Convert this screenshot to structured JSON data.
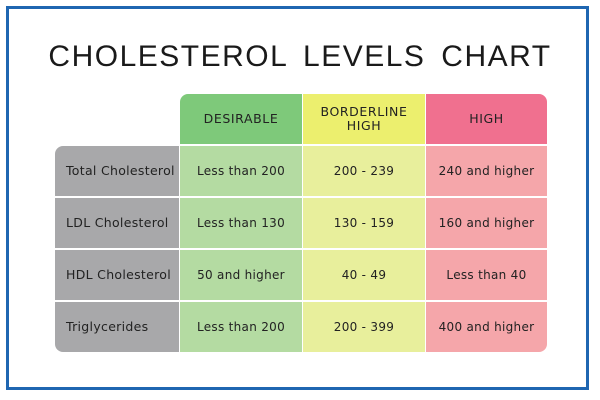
{
  "chart_data": {
    "type": "table",
    "title": "CHOLESTEROL LEVELS CHART",
    "columns": [
      "DESIRABLE",
      "BORDERLINE\nHIGH",
      "HIGH"
    ],
    "rows": [
      {
        "label": "Total Cholesterol",
        "values": [
          "Less than 200",
          "200 - 239",
          "240 and higher"
        ]
      },
      {
        "label": "LDL Cholesterol",
        "values": [
          "Less than 130",
          "130 - 159",
          "160 and higher"
        ]
      },
      {
        "label": "HDL Cholesterol",
        "values": [
          "50 and higher",
          "40 - 49",
          "Less than 40"
        ]
      },
      {
        "label": "Triglycerides",
        "values": [
          "Less than 200",
          "200 - 399",
          "400 and higher"
        ]
      }
    ]
  },
  "colors": {
    "frame_border": "#1f66b1",
    "desirable_header": "#7ec97a",
    "borderline_header": "#ecef6e",
    "high_header": "#f0708f",
    "desirable_cell": "#b4dba2",
    "borderline_cell": "#e8ef9c",
    "high_cell": "#f5a6aa",
    "row_label": "#a8a8aa"
  }
}
